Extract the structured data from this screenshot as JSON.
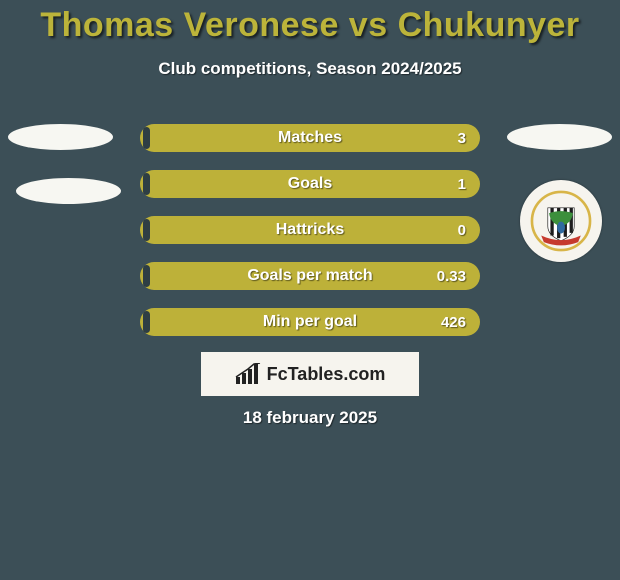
{
  "background_color": "#3c4f57",
  "title": "Thomas Veronese vs Chukunyer",
  "title_color": "#bcb43a",
  "title_fontsize": 34,
  "subtitle": "Club competitions, Season 2024/2025",
  "subtitle_color": "#ffffff",
  "bars": {
    "track_color": "#bdb139",
    "track_border_color": "#bdb139",
    "fill_color": "#2e3e44",
    "label_color": "#ffffff",
    "value_color": "#ffffff",
    "items": [
      {
        "label": "Matches",
        "value": "3",
        "left_fill_frac": 0.02
      },
      {
        "label": "Goals",
        "value": "1",
        "left_fill_frac": 0.02
      },
      {
        "label": "Hattricks",
        "value": "0",
        "left_fill_frac": 0.02
      },
      {
        "label": "Goals per match",
        "value": "0.33",
        "left_fill_frac": 0.02
      },
      {
        "label": "Min per goal",
        "value": "426",
        "left_fill_frac": 0.02
      }
    ]
  },
  "branding": {
    "text": "FcTables.com",
    "background": "#f6f4ee",
    "text_color": "#222222"
  },
  "date": "18 february 2025",
  "crest": {
    "ring_color": "#d8b548",
    "stripe_dark": "#1d1d1d",
    "stripe_light": "#ffffff",
    "peacock_body": "#2f6aa0",
    "peacock_fan": "#3c8f3c",
    "banner": "#c63a2e"
  }
}
